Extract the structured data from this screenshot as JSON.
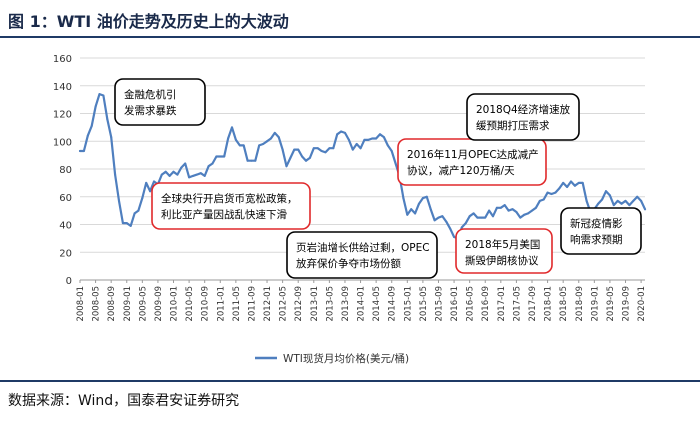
{
  "figure": {
    "title": "图 1：WTI 油价走势及历史上的大波动",
    "source": "数据来源：Wind，国泰君安证券研究"
  },
  "colors": {
    "line": "#4f7fbf",
    "box_red": "#e0292b",
    "box_black": "#000000",
    "grid": "#d9d9d9",
    "header_rule": "#1f3a66"
  },
  "chart_data": {
    "type": "line",
    "title": "",
    "xlabel": "",
    "ylabel": "",
    "ylim": [
      0,
      160
    ],
    "yticks": [
      0,
      20,
      40,
      60,
      80,
      100,
      120,
      140,
      160
    ],
    "grid": true,
    "legend_position": "bottom",
    "x_tick_labels": [
      "2008-01",
      "2008-05",
      "2008-09",
      "2009-01",
      "2009-05",
      "2009-09",
      "2010-01",
      "2010-05",
      "2010-09",
      "2011-01",
      "2011-05",
      "2011-09",
      "2012-01",
      "2012-05",
      "2012-09",
      "2013-01",
      "2013-05",
      "2013-09",
      "2014-01",
      "2014-05",
      "2014-09",
      "2015-01",
      "2015-05",
      "2015-09",
      "2016-01",
      "2016-05",
      "2016-09",
      "2017-01",
      "2017-05",
      "2017-09",
      "2018-01",
      "2018-05",
      "2018-09",
      "2019-01",
      "2019-05",
      "2019-09",
      "2020-01"
    ],
    "series": [
      {
        "name": "WTI现货月均价格(美元/桶)",
        "x": [
          "2008-01",
          "2008-02",
          "2008-03",
          "2008-04",
          "2008-05",
          "2008-06",
          "2008-07",
          "2008-08",
          "2008-09",
          "2008-10",
          "2008-11",
          "2008-12",
          "2009-01",
          "2009-02",
          "2009-03",
          "2009-04",
          "2009-05",
          "2009-06",
          "2009-07",
          "2009-08",
          "2009-09",
          "2009-10",
          "2009-11",
          "2009-12",
          "2010-01",
          "2010-02",
          "2010-03",
          "2010-04",
          "2010-05",
          "2010-06",
          "2010-07",
          "2010-08",
          "2010-09",
          "2010-10",
          "2010-11",
          "2010-12",
          "2011-01",
          "2011-02",
          "2011-03",
          "2011-04",
          "2011-05",
          "2011-06",
          "2011-07",
          "2011-08",
          "2011-09",
          "2011-10",
          "2011-11",
          "2011-12",
          "2012-01",
          "2012-02",
          "2012-03",
          "2012-04",
          "2012-05",
          "2012-06",
          "2012-07",
          "2012-08",
          "2012-09",
          "2012-10",
          "2012-11",
          "2012-12",
          "2013-01",
          "2013-02",
          "2013-03",
          "2013-04",
          "2013-05",
          "2013-06",
          "2013-07",
          "2013-08",
          "2013-09",
          "2013-10",
          "2013-11",
          "2013-12",
          "2014-01",
          "2014-02",
          "2014-03",
          "2014-04",
          "2014-05",
          "2014-06",
          "2014-07",
          "2014-08",
          "2014-09",
          "2014-10",
          "2014-11",
          "2014-12",
          "2015-01",
          "2015-02",
          "2015-03",
          "2015-04",
          "2015-05",
          "2015-06",
          "2015-07",
          "2015-08",
          "2015-09",
          "2015-10",
          "2015-11",
          "2015-12",
          "2016-01",
          "2016-02",
          "2016-03",
          "2016-04",
          "2016-05",
          "2016-06",
          "2016-07",
          "2016-08",
          "2016-09",
          "2016-10",
          "2016-11",
          "2016-12",
          "2017-01",
          "2017-02",
          "2017-03",
          "2017-04",
          "2017-05",
          "2017-06",
          "2017-07",
          "2017-08",
          "2017-09",
          "2017-10",
          "2017-11",
          "2017-12",
          "2018-01",
          "2018-02",
          "2018-03",
          "2018-04",
          "2018-05",
          "2018-06",
          "2018-07",
          "2018-08",
          "2018-09",
          "2018-10",
          "2018-11",
          "2018-12",
          "2019-01",
          "2019-02",
          "2019-03",
          "2019-04",
          "2019-05",
          "2019-06",
          "2019-07",
          "2019-08",
          "2019-09",
          "2019-10",
          "2019-11",
          "2019-12",
          "2020-01",
          "2020-02"
        ],
        "values": [
          93,
          93,
          104,
          111,
          125,
          134,
          133,
          116,
          103,
          76,
          57,
          41,
          41,
          39,
          48,
          50,
          59,
          70,
          64,
          71,
          69,
          76,
          78,
          75,
          78,
          76,
          81,
          84,
          74,
          75,
          76,
          77,
          75,
          82,
          84,
          89,
          89,
          89,
          102,
          110,
          101,
          97,
          97,
          86,
          86,
          86,
          97,
          98,
          100,
          102,
          106,
          103,
          94,
          82,
          88,
          94,
          94,
          89,
          86,
          88,
          95,
          95,
          93,
          92,
          95,
          95,
          105,
          107,
          106,
          101,
          94,
          98,
          95,
          101,
          101,
          102,
          102,
          105,
          103,
          97,
          93,
          84,
          75,
          59,
          47,
          51,
          48,
          55,
          59,
          60,
          51,
          43,
          45,
          46,
          42,
          37,
          31,
          30,
          38,
          41,
          46,
          48,
          45,
          45,
          45,
          50,
          46,
          52,
          52,
          54,
          50,
          51,
          49,
          45,
          47,
          48,
          50,
          52,
          57,
          58,
          63,
          62,
          63,
          66,
          70,
          67,
          71,
          68,
          70,
          70,
          57,
          49,
          51,
          55,
          58,
          64,
          61,
          54,
          57,
          55,
          57,
          54,
          57,
          60,
          57,
          51
        ]
      }
    ],
    "annotations": [
      {
        "id": "crisis",
        "lines": [
          "金融危机引",
          "发需求暴跌"
        ],
        "style": "black"
      },
      {
        "id": "easing",
        "lines": [
          "全球央行开启货币宽松政策，",
          "利比亚产量因战乱快速下滑"
        ],
        "style": "red"
      },
      {
        "id": "shale",
        "lines": [
          "页岩油增长供给过剩，OPEC",
          "放弃保价争夺市场份额"
        ],
        "style": "black"
      },
      {
        "id": "opec_cut",
        "lines": [
          "2016年11月OPEC达成减产",
          "协议，减产120万桶/天"
        ],
        "style": "red"
      },
      {
        "id": "iran",
        "lines": [
          "2018年5月美国",
          "撕毁伊朗核协议"
        ],
        "style": "red"
      },
      {
        "id": "q4_2018",
        "lines": [
          "2018Q4经济增速放",
          "缓预期打压需求"
        ],
        "style": "black"
      },
      {
        "id": "covid",
        "lines": [
          "新冠疫情影",
          "响需求预期"
        ],
        "style": "black"
      }
    ]
  }
}
